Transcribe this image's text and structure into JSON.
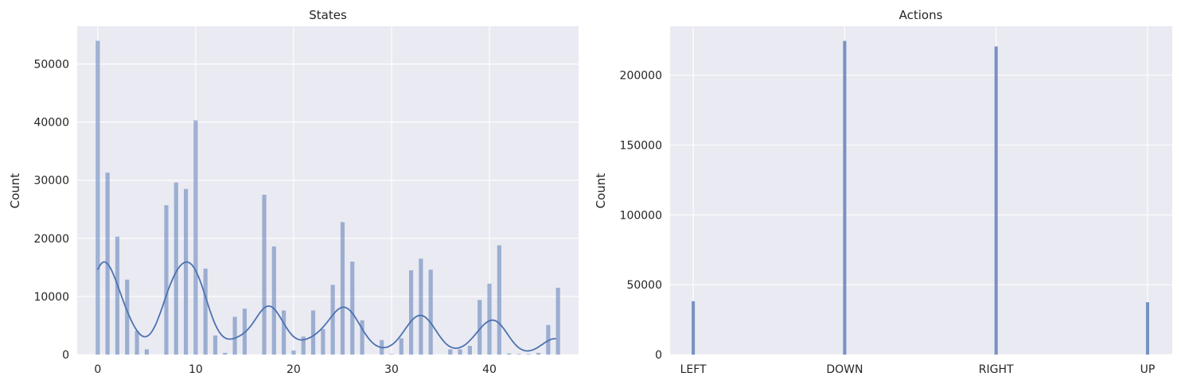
{
  "colors": {
    "plot_bg": "#eaeaf2",
    "grid": "#ffffff",
    "bar": "#4c72b0",
    "kde": "#4c72b0",
    "text": "#262626"
  },
  "chart_data": [
    {
      "type": "bar",
      "title": "States",
      "xlabel": "",
      "ylabel": "Count",
      "xlim": [
        -2.1,
        49.1
      ],
      "ylim": [
        0,
        56500
      ],
      "grid": true,
      "kde": true,
      "xticks": [
        0,
        10,
        20,
        30,
        40
      ],
      "yticks": [
        0,
        10000,
        20000,
        30000,
        40000,
        50000
      ],
      "x": [
        0,
        1,
        2,
        3,
        4,
        5,
        6,
        7,
        8,
        9,
        10,
        11,
        12,
        13,
        14,
        15,
        16,
        17,
        18,
        19,
        20,
        21,
        22,
        23,
        24,
        25,
        26,
        27,
        28,
        29,
        30,
        31,
        32,
        33,
        34,
        35,
        36,
        37,
        38,
        39,
        40,
        41,
        42,
        43,
        44,
        45,
        46,
        47
      ],
      "values": [
        54000,
        31300,
        20300,
        12900,
        4100,
        900,
        0,
        25700,
        29600,
        28500,
        40300,
        14800,
        3300,
        300,
        6500,
        7900,
        0,
        27500,
        18600,
        7600,
        700,
        3100,
        7600,
        4400,
        12000,
        22800,
        16000,
        5900,
        0,
        2500,
        100,
        2800,
        14500,
        16500,
        14600,
        0,
        900,
        900,
        1500,
        9400,
        12200,
        18800,
        200,
        100,
        100,
        300,
        5100,
        11500
      ]
    },
    {
      "type": "bar",
      "title": "Actions",
      "xlabel": "",
      "ylabel": "Count",
      "ylim": [
        0,
        235000
      ],
      "grid": true,
      "categories": [
        "LEFT",
        "DOWN",
        "RIGHT",
        "UP"
      ],
      "yticks": [
        0,
        50000,
        100000,
        150000,
        200000
      ],
      "values": [
        38200,
        224500,
        220500,
        37500
      ]
    }
  ]
}
